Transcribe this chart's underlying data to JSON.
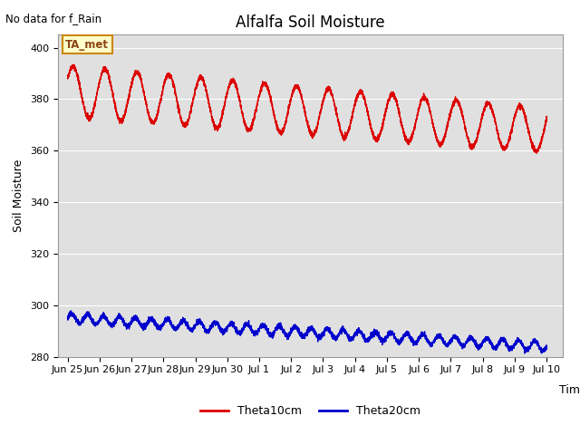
{
  "title": "Alfalfa Soil Moisture",
  "no_data_label": "No data for f_Rain",
  "ta_met_label": "TA_met",
  "ylabel": "Soil Moisture",
  "xlabel": "Time",
  "ylim": [
    280,
    405
  ],
  "yticks": [
    280,
    300,
    320,
    340,
    360,
    380,
    400
  ],
  "theta10_color": "#dd0000",
  "theta20_color": "#0000cc",
  "bg_color": "#e0e0e0",
  "legend_label1": "Theta10cm",
  "legend_label2": "Theta20cm",
  "title_fontsize": 12,
  "axis_fontsize": 9,
  "tick_fontsize": 8,
  "tick_labels": [
    "Jun 25",
    "Jun 26",
    "Jun 27",
    "Jun 28",
    "Jun 29",
    "Jun 30",
    "Jul 1",
    "Jul 2",
    "Jul 3",
    "Jul 4",
    "Jul 5",
    "Jul 6",
    "Jul 7",
    "Jul 8",
    "Jul 9",
    "Jul 10"
  ]
}
